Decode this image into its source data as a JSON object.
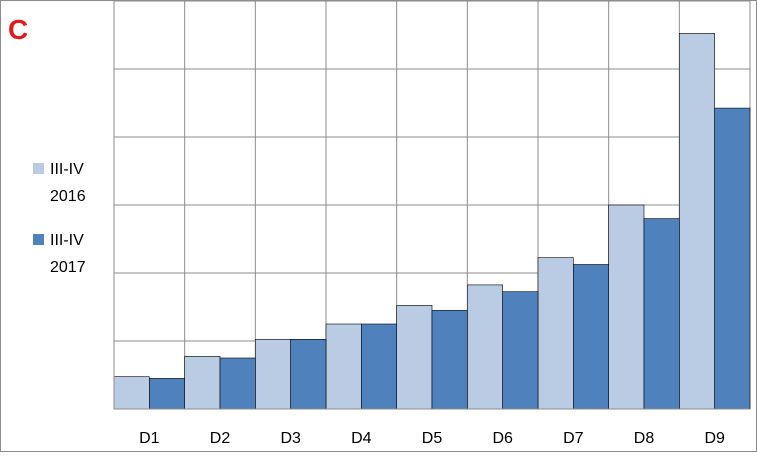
{
  "panel_letter": "C",
  "colors": {
    "panel_letter": "#e41a1c",
    "series_2016": "#b9cce4",
    "series_2017": "#4f81bd",
    "grid": "#8c8c8c",
    "border": "#8c8c8c"
  },
  "legend": {
    "items": [
      {
        "line1": "III-IV",
        "line2": "2016"
      },
      {
        "line1": "III-IV",
        "line2": "2017"
      }
    ]
  },
  "chart_data": {
    "type": "bar",
    "title": "",
    "xlabel": "",
    "ylabel": "",
    "categories": [
      "D1",
      "D2",
      "D3",
      "D4",
      "D5",
      "D6",
      "D7",
      "D8",
      "D9"
    ],
    "y_tick_labels_shown": false,
    "ylim": [
      0,
      12
    ],
    "grid": true,
    "legend_position": "left",
    "series": [
      {
        "name": "III-IV 2016",
        "values": [
          0.95,
          1.55,
          2.05,
          2.5,
          3.05,
          3.65,
          4.45,
          6.0,
          11.05
        ]
      },
      {
        "name": "III-IV 2017",
        "values": [
          0.9,
          1.5,
          2.05,
          2.5,
          2.9,
          3.45,
          4.25,
          5.6,
          8.85
        ]
      }
    ]
  }
}
